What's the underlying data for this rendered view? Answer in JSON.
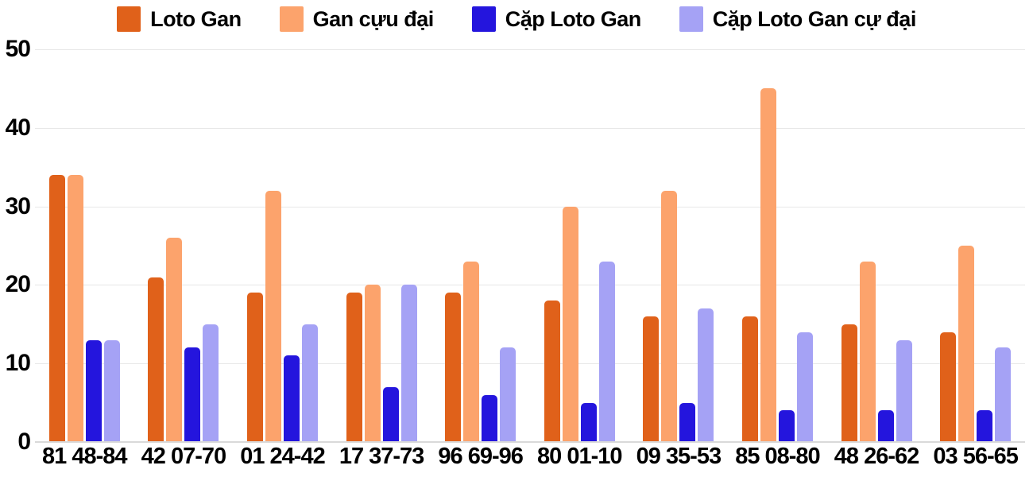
{
  "chart_data": {
    "type": "bar",
    "title": "",
    "xlabel": "",
    "ylabel": "",
    "categories": [
      "81 48-84",
      "42 07-70",
      "01 24-42",
      "17 37-73",
      "96 69-96",
      "80 01-10",
      "09 35-53",
      "85 08-80",
      "48 26-62",
      "03 56-65"
    ],
    "series": [
      {
        "name": "Loto Gan",
        "slug": "loto-gan",
        "color": "#e0611a",
        "values": [
          34,
          21,
          19,
          19,
          19,
          18,
          16,
          16,
          15,
          14
        ]
      },
      {
        "name": "Gan cựu đại",
        "slug": "gan-cuu-dai",
        "color": "#fca36c",
        "values": [
          34,
          26,
          32,
          20,
          23,
          30,
          32,
          45,
          23,
          25
        ]
      },
      {
        "name": "Cặp Loto Gan",
        "slug": "cap-loto-gan",
        "color": "#2415dd",
        "values": [
          13,
          12,
          11,
          7,
          6,
          5,
          5,
          4,
          4,
          4
        ]
      },
      {
        "name": "Cặp Loto Gan cự đại",
        "slug": "cap-loto-gan-cu-dai",
        "color": "#a5a2f5",
        "values": [
          13,
          15,
          15,
          20,
          12,
          23,
          17,
          14,
          13,
          12
        ]
      }
    ],
    "ylim": [
      0,
      50
    ],
    "yticks": [
      0,
      10,
      20,
      30,
      40,
      50
    ],
    "grid": true,
    "legend_position": "top"
  },
  "colors": {
    "background": "#ffffff",
    "gridline": "#e7e7e7",
    "baseline": "#d9d9d9",
    "text": "#000000"
  }
}
